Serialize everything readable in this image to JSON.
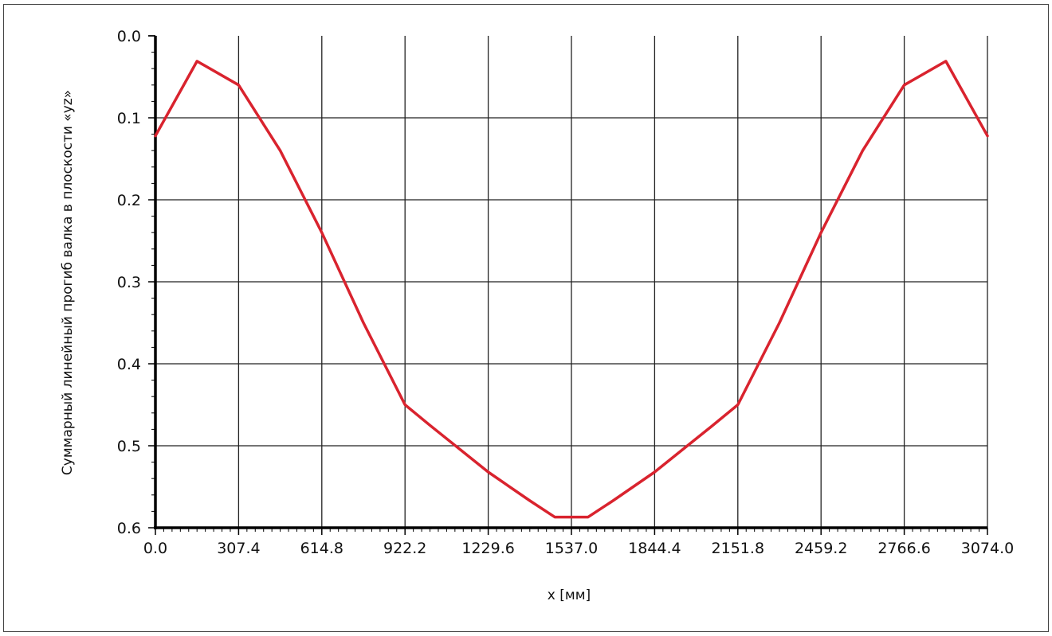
{
  "chart_data": {
    "type": "line",
    "xlabel": "x [мм]",
    "ylabel": "Суммарный линейный прогиб валка в плоскости «yz»",
    "xlim": [
      0,
      3074
    ],
    "ylim": [
      0,
      0.6
    ],
    "y_inverted": true,
    "grid": true,
    "x_ticks": [
      "0.0",
      "307.4",
      "614.8",
      "922.2",
      "1229.6",
      "1537.0",
      "1844.4",
      "2151.8",
      "2459.2",
      "2766.6",
      "3074.0"
    ],
    "y_ticks": [
      "0.0",
      "0.1",
      "0.2",
      "0.3",
      "0.4",
      "0.5",
      "0.6"
    ],
    "colors": {
      "line": "#d9232e",
      "grid": "#222222",
      "axis": "#000000"
    },
    "series": [
      {
        "x": [
          0,
          153.7,
          307.4,
          461.1,
          614.8,
          768.5,
          922.2,
          1014.4,
          1229.6,
          1383.3,
          1475.5,
          1598.5,
          1690.7,
          1844.4,
          2059.6,
          2151.8,
          2305.5,
          2459.2,
          2612.9,
          2766.6,
          2920.3,
          3074.0
        ],
        "y": [
          0.122,
          0.031,
          0.06,
          0.14,
          0.24,
          0.35,
          0.45,
          0.475,
          0.532,
          0.567,
          0.587,
          0.587,
          0.567,
          0.532,
          0.475,
          0.45,
          0.35,
          0.24,
          0.14,
          0.06,
          0.031,
          0.122
        ]
      }
    ]
  }
}
